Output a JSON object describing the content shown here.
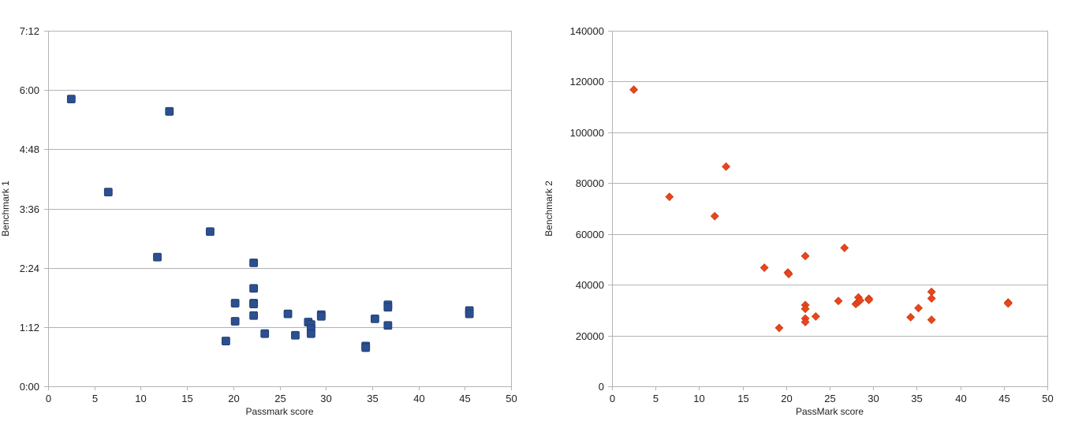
{
  "chart_data": [
    {
      "type": "scatter",
      "title": "",
      "xlabel": "Passmark score",
      "ylabel": "Benchmark 1",
      "xlim": [
        0,
        50
      ],
      "ylim": [
        0,
        432
      ],
      "x_ticks": [
        0,
        5,
        10,
        15,
        20,
        25,
        30,
        35,
        40,
        45,
        50
      ],
      "x_tick_labels": [
        "0",
        "5",
        "10",
        "15",
        "20",
        "25",
        "30",
        "35",
        "40",
        "45",
        "50"
      ],
      "y_ticks": [
        0,
        72,
        144,
        216,
        288,
        360,
        432
      ],
      "y_tick_labels": [
        "0:00",
        "1:12",
        "2:24",
        "3:36",
        "4:48",
        "6:00",
        "7:12"
      ],
      "y_units": "minutes (shown as h:mm)",
      "grid": "horizontal",
      "marker": "square",
      "color": "#2b4f8f",
      "points": [
        {
          "x": 2.5,
          "y": 349
        },
        {
          "x": 6.5,
          "y": 236
        },
        {
          "x": 11.8,
          "y": 157
        },
        {
          "x": 13.1,
          "y": 334
        },
        {
          "x": 17.5,
          "y": 188
        },
        {
          "x": 19.2,
          "y": 55
        },
        {
          "x": 20.2,
          "y": 101
        },
        {
          "x": 20.2,
          "y": 79
        },
        {
          "x": 22.2,
          "y": 150
        },
        {
          "x": 22.2,
          "y": 119
        },
        {
          "x": 22.2,
          "y": 101
        },
        {
          "x": 22.2,
          "y": 100
        },
        {
          "x": 22.2,
          "y": 86
        },
        {
          "x": 23.4,
          "y": 64
        },
        {
          "x": 25.9,
          "y": 88
        },
        {
          "x": 26.7,
          "y": 62
        },
        {
          "x": 28.1,
          "y": 78
        },
        {
          "x": 28.4,
          "y": 75
        },
        {
          "x": 28.4,
          "y": 70
        },
        {
          "x": 28.4,
          "y": 64
        },
        {
          "x": 29.5,
          "y": 87
        },
        {
          "x": 29.5,
          "y": 85
        },
        {
          "x": 34.3,
          "y": 49
        },
        {
          "x": 34.3,
          "y": 47
        },
        {
          "x": 35.3,
          "y": 82
        },
        {
          "x": 36.7,
          "y": 99
        },
        {
          "x": 36.7,
          "y": 96
        },
        {
          "x": 36.7,
          "y": 74
        },
        {
          "x": 45.5,
          "y": 92
        },
        {
          "x": 45.5,
          "y": 88
        }
      ]
    },
    {
      "type": "scatter",
      "title": "",
      "xlabel": "PassMark score",
      "ylabel": "Benchmark 2",
      "xlim": [
        0,
        50
      ],
      "ylim": [
        0,
        140000
      ],
      "x_ticks": [
        0,
        5,
        10,
        15,
        20,
        25,
        30,
        35,
        40,
        45,
        50
      ],
      "x_tick_labels": [
        "0",
        "5",
        "10",
        "15",
        "20",
        "25",
        "30",
        "35",
        "40",
        "45",
        "50"
      ],
      "y_ticks": [
        0,
        20000,
        40000,
        60000,
        80000,
        100000,
        120000,
        140000
      ],
      "y_tick_labels": [
        "0",
        "20000",
        "40000",
        "60000",
        "80000",
        "100000",
        "120000",
        "140000"
      ],
      "grid": "horizontal",
      "marker": "diamond",
      "color": "#e8461c",
      "points": [
        {
          "x": 2.5,
          "y": 116800
        },
        {
          "x": 6.6,
          "y": 74600
        },
        {
          "x": 11.8,
          "y": 67000
        },
        {
          "x": 13.1,
          "y": 86500
        },
        {
          "x": 17.5,
          "y": 46700
        },
        {
          "x": 19.2,
          "y": 23000
        },
        {
          "x": 20.2,
          "y": 44800
        },
        {
          "x": 20.3,
          "y": 44200
        },
        {
          "x": 22.2,
          "y": 51300
        },
        {
          "x": 22.2,
          "y": 32000
        },
        {
          "x": 22.2,
          "y": 30500
        },
        {
          "x": 22.2,
          "y": 26700
        },
        {
          "x": 22.2,
          "y": 25300
        },
        {
          "x": 23.4,
          "y": 27500
        },
        {
          "x": 26.0,
          "y": 33600
        },
        {
          "x": 26.7,
          "y": 54500
        },
        {
          "x": 28.0,
          "y": 32400
        },
        {
          "x": 28.3,
          "y": 35000
        },
        {
          "x": 28.3,
          "y": 33200
        },
        {
          "x": 28.5,
          "y": 33800
        },
        {
          "x": 29.5,
          "y": 34500
        },
        {
          "x": 29.5,
          "y": 34000
        },
        {
          "x": 34.3,
          "y": 27200
        },
        {
          "x": 35.2,
          "y": 30800
        },
        {
          "x": 36.7,
          "y": 37200
        },
        {
          "x": 36.7,
          "y": 34600
        },
        {
          "x": 36.7,
          "y": 26200
        },
        {
          "x": 45.5,
          "y": 33000
        },
        {
          "x": 45.5,
          "y": 32600
        }
      ]
    }
  ]
}
